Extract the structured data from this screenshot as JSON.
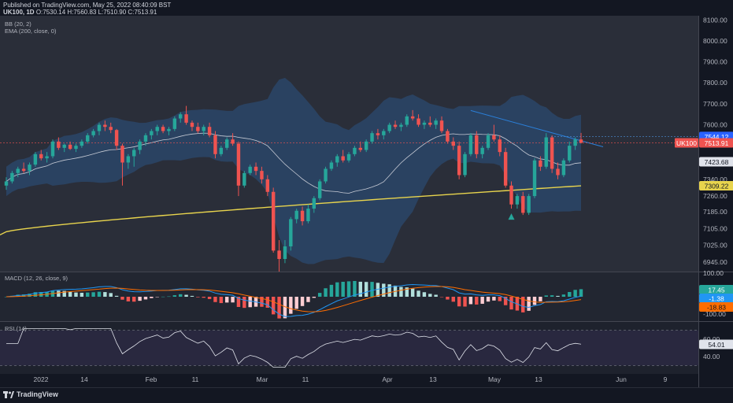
{
  "header": {
    "published": "Published on TradingView.com, May 25, 2022 08:40:09 BST",
    "symbol": "UK100, 1D",
    "o": "O:7530.14",
    "h": "H:7560.83",
    "l": "L:7510.90",
    "c": "C:7513.91"
  },
  "indicators": {
    "bb": "BB (20, 2)",
    "ema": "EMA (200, close, 0)",
    "macd": "MACD (12, 26, close, 9)",
    "rsi": "RSI (14)"
  },
  "footer": {
    "brand": "TradingView"
  },
  "price_axis": {
    "labels": [
      "8100.00",
      "8000.00",
      "7900.00",
      "7800.00",
      "7700.00",
      "7600.00",
      "7340.00",
      "7260.00",
      "7185.00",
      "7105.00",
      "7025.00",
      "6945.00"
    ],
    "tags": {
      "upper": "7544.12",
      "symbol": "UK100",
      "last": "7513.91",
      "mid": "7423.68",
      "ema": "7309.22"
    }
  },
  "macd_axis": {
    "labels": [
      "100.00",
      "-100.00"
    ],
    "tags": {
      "macd": "17.45",
      "signal": "-1.38",
      "hist": "-18.83"
    }
  },
  "rsi_axis": {
    "labels": [
      "60.00",
      "40.00"
    ],
    "tags": {
      "rsi": "54.01"
    }
  },
  "time_axis": [
    "2022",
    "14",
    "Feb",
    "11",
    "Mar",
    "11",
    "Apr",
    "13",
    "May",
    "13",
    "Jun",
    "9"
  ],
  "colors": {
    "up": "#26a69a",
    "down": "#ef5350",
    "bb_fill": "#2b4a6f",
    "ema": "#e8d44d",
    "basis": "#c8ccd6",
    "trend": "#2a7fd8",
    "macd_line": "#2196f3",
    "signal_line": "#ff6d00",
    "rsi_line": "#e0e3eb"
  },
  "chart_data": {
    "type": "candlestick",
    "ylim": [
      6900,
      8120
    ],
    "candles": [
      [
        7310,
        7350,
        7290,
        7330
      ],
      [
        7330,
        7380,
        7320,
        7370
      ],
      [
        7370,
        7400,
        7350,
        7390
      ],
      [
        7390,
        7420,
        7370,
        7380
      ],
      [
        7380,
        7420,
        7360,
        7410
      ],
      [
        7410,
        7470,
        7400,
        7460
      ],
      [
        7460,
        7480,
        7430,
        7440
      ],
      [
        7440,
        7470,
        7420,
        7450
      ],
      [
        7450,
        7530,
        7440,
        7520
      ],
      [
        7520,
        7540,
        7480,
        7490
      ],
      [
        7490,
        7510,
        7470,
        7505
      ],
      [
        7505,
        7520,
        7480,
        7485
      ],
      [
        7485,
        7510,
        7470,
        7500
      ],
      [
        7500,
        7530,
        7490,
        7520
      ],
      [
        7520,
        7560,
        7510,
        7550
      ],
      [
        7550,
        7580,
        7540,
        7570
      ],
      [
        7570,
        7610,
        7550,
        7600
      ],
      [
        7600,
        7620,
        7570,
        7590
      ],
      [
        7590,
        7610,
        7560,
        7575
      ],
      [
        7575,
        7580,
        7480,
        7500
      ],
      [
        7500,
        7510,
        7310,
        7420
      ],
      [
        7420,
        7460,
        7390,
        7450
      ],
      [
        7450,
        7490,
        7400,
        7480
      ],
      [
        7480,
        7530,
        7460,
        7520
      ],
      [
        7520,
        7560,
        7500,
        7550
      ],
      [
        7550,
        7580,
        7530,
        7570
      ],
      [
        7570,
        7600,
        7550,
        7590
      ],
      [
        7590,
        7600,
        7560,
        7570
      ],
      [
        7570,
        7590,
        7550,
        7580
      ],
      [
        7580,
        7640,
        7570,
        7630
      ],
      [
        7630,
        7660,
        7610,
        7650
      ],
      [
        7650,
        7690,
        7600,
        7610
      ],
      [
        7610,
        7620,
        7570,
        7590
      ],
      [
        7590,
        7610,
        7560,
        7570
      ],
      [
        7570,
        7600,
        7550,
        7590
      ],
      [
        7590,
        7610,
        7540,
        7550
      ],
      [
        7550,
        7570,
        7440,
        7460
      ],
      [
        7460,
        7500,
        7450,
        7490
      ],
      [
        7490,
        7540,
        7480,
        7530
      ],
      [
        7530,
        7560,
        7500,
        7510
      ],
      [
        7510,
        7520,
        7260,
        7310
      ],
      [
        7310,
        7380,
        7300,
        7370
      ],
      [
        7370,
        7410,
        7360,
        7400
      ],
      [
        7400,
        7420,
        7360,
        7380
      ],
      [
        7380,
        7400,
        7320,
        7340
      ],
      [
        7340,
        7360,
        7260,
        7280
      ],
      [
        7280,
        7300,
        6990,
        7000
      ],
      [
        7000,
        7050,
        6900,
        6960
      ],
      [
        6960,
        7050,
        6940,
        7020
      ],
      [
        7020,
        7160,
        7000,
        7150
      ],
      [
        7150,
        7200,
        7130,
        7190
      ],
      [
        7190,
        7210,
        7120,
        7140
      ],
      [
        7140,
        7220,
        7130,
        7200
      ],
      [
        7200,
        7260,
        7180,
        7250
      ],
      [
        7250,
        7340,
        7240,
        7330
      ],
      [
        7330,
        7400,
        7320,
        7390
      ],
      [
        7390,
        7430,
        7380,
        7420
      ],
      [
        7420,
        7460,
        7400,
        7450
      ],
      [
        7450,
        7480,
        7420,
        7430
      ],
      [
        7430,
        7470,
        7420,
        7460
      ],
      [
        7460,
        7500,
        7450,
        7490
      ],
      [
        7490,
        7520,
        7470,
        7480
      ],
      [
        7480,
        7530,
        7470,
        7520
      ],
      [
        7520,
        7570,
        7510,
        7560
      ],
      [
        7560,
        7580,
        7530,
        7550
      ],
      [
        7550,
        7580,
        7530,
        7570
      ],
      [
        7570,
        7610,
        7560,
        7600
      ],
      [
        7600,
        7620,
        7580,
        7590
      ],
      [
        7590,
        7610,
        7570,
        7600
      ],
      [
        7600,
        7650,
        7590,
        7640
      ],
      [
        7640,
        7670,
        7620,
        7630
      ],
      [
        7630,
        7650,
        7590,
        7600
      ],
      [
        7600,
        7620,
        7580,
        7610
      ],
      [
        7610,
        7640,
        7590,
        7600
      ],
      [
        7600,
        7630,
        7580,
        7620
      ],
      [
        7620,
        7640,
        7560,
        7570
      ],
      [
        7570,
        7580,
        7510,
        7520
      ],
      [
        7520,
        7540,
        7480,
        7500
      ],
      [
        7500,
        7520,
        7340,
        7360
      ],
      [
        7360,
        7470,
        7350,
        7460
      ],
      [
        7460,
        7560,
        7450,
        7550
      ],
      [
        7550,
        7570,
        7440,
        7460
      ],
      [
        7460,
        7500,
        7440,
        7490
      ],
      [
        7490,
        7560,
        7480,
        7550
      ],
      [
        7550,
        7600,
        7520,
        7530
      ],
      [
        7530,
        7550,
        7450,
        7470
      ],
      [
        7470,
        7490,
        7300,
        7310
      ],
      [
        7310,
        7330,
        7200,
        7220
      ],
      [
        7220,
        7270,
        7200,
        7260
      ],
      [
        7260,
        7280,
        7170,
        7180
      ],
      [
        7180,
        7270,
        7170,
        7260
      ],
      [
        7260,
        7440,
        7250,
        7430
      ],
      [
        7430,
        7450,
        7380,
        7400
      ],
      [
        7400,
        7560,
        7390,
        7540
      ],
      [
        7540,
        7550,
        7370,
        7390
      ],
      [
        7390,
        7420,
        7340,
        7360
      ],
      [
        7360,
        7440,
        7350,
        7430
      ],
      [
        7430,
        7520,
        7420,
        7500
      ],
      [
        7500,
        7540,
        7480,
        7530
      ],
      [
        7530,
        7561,
        7511,
        7514
      ]
    ],
    "annotations": {
      "trendline": "descending resistance from April high",
      "last_price": 7513.91
    }
  }
}
